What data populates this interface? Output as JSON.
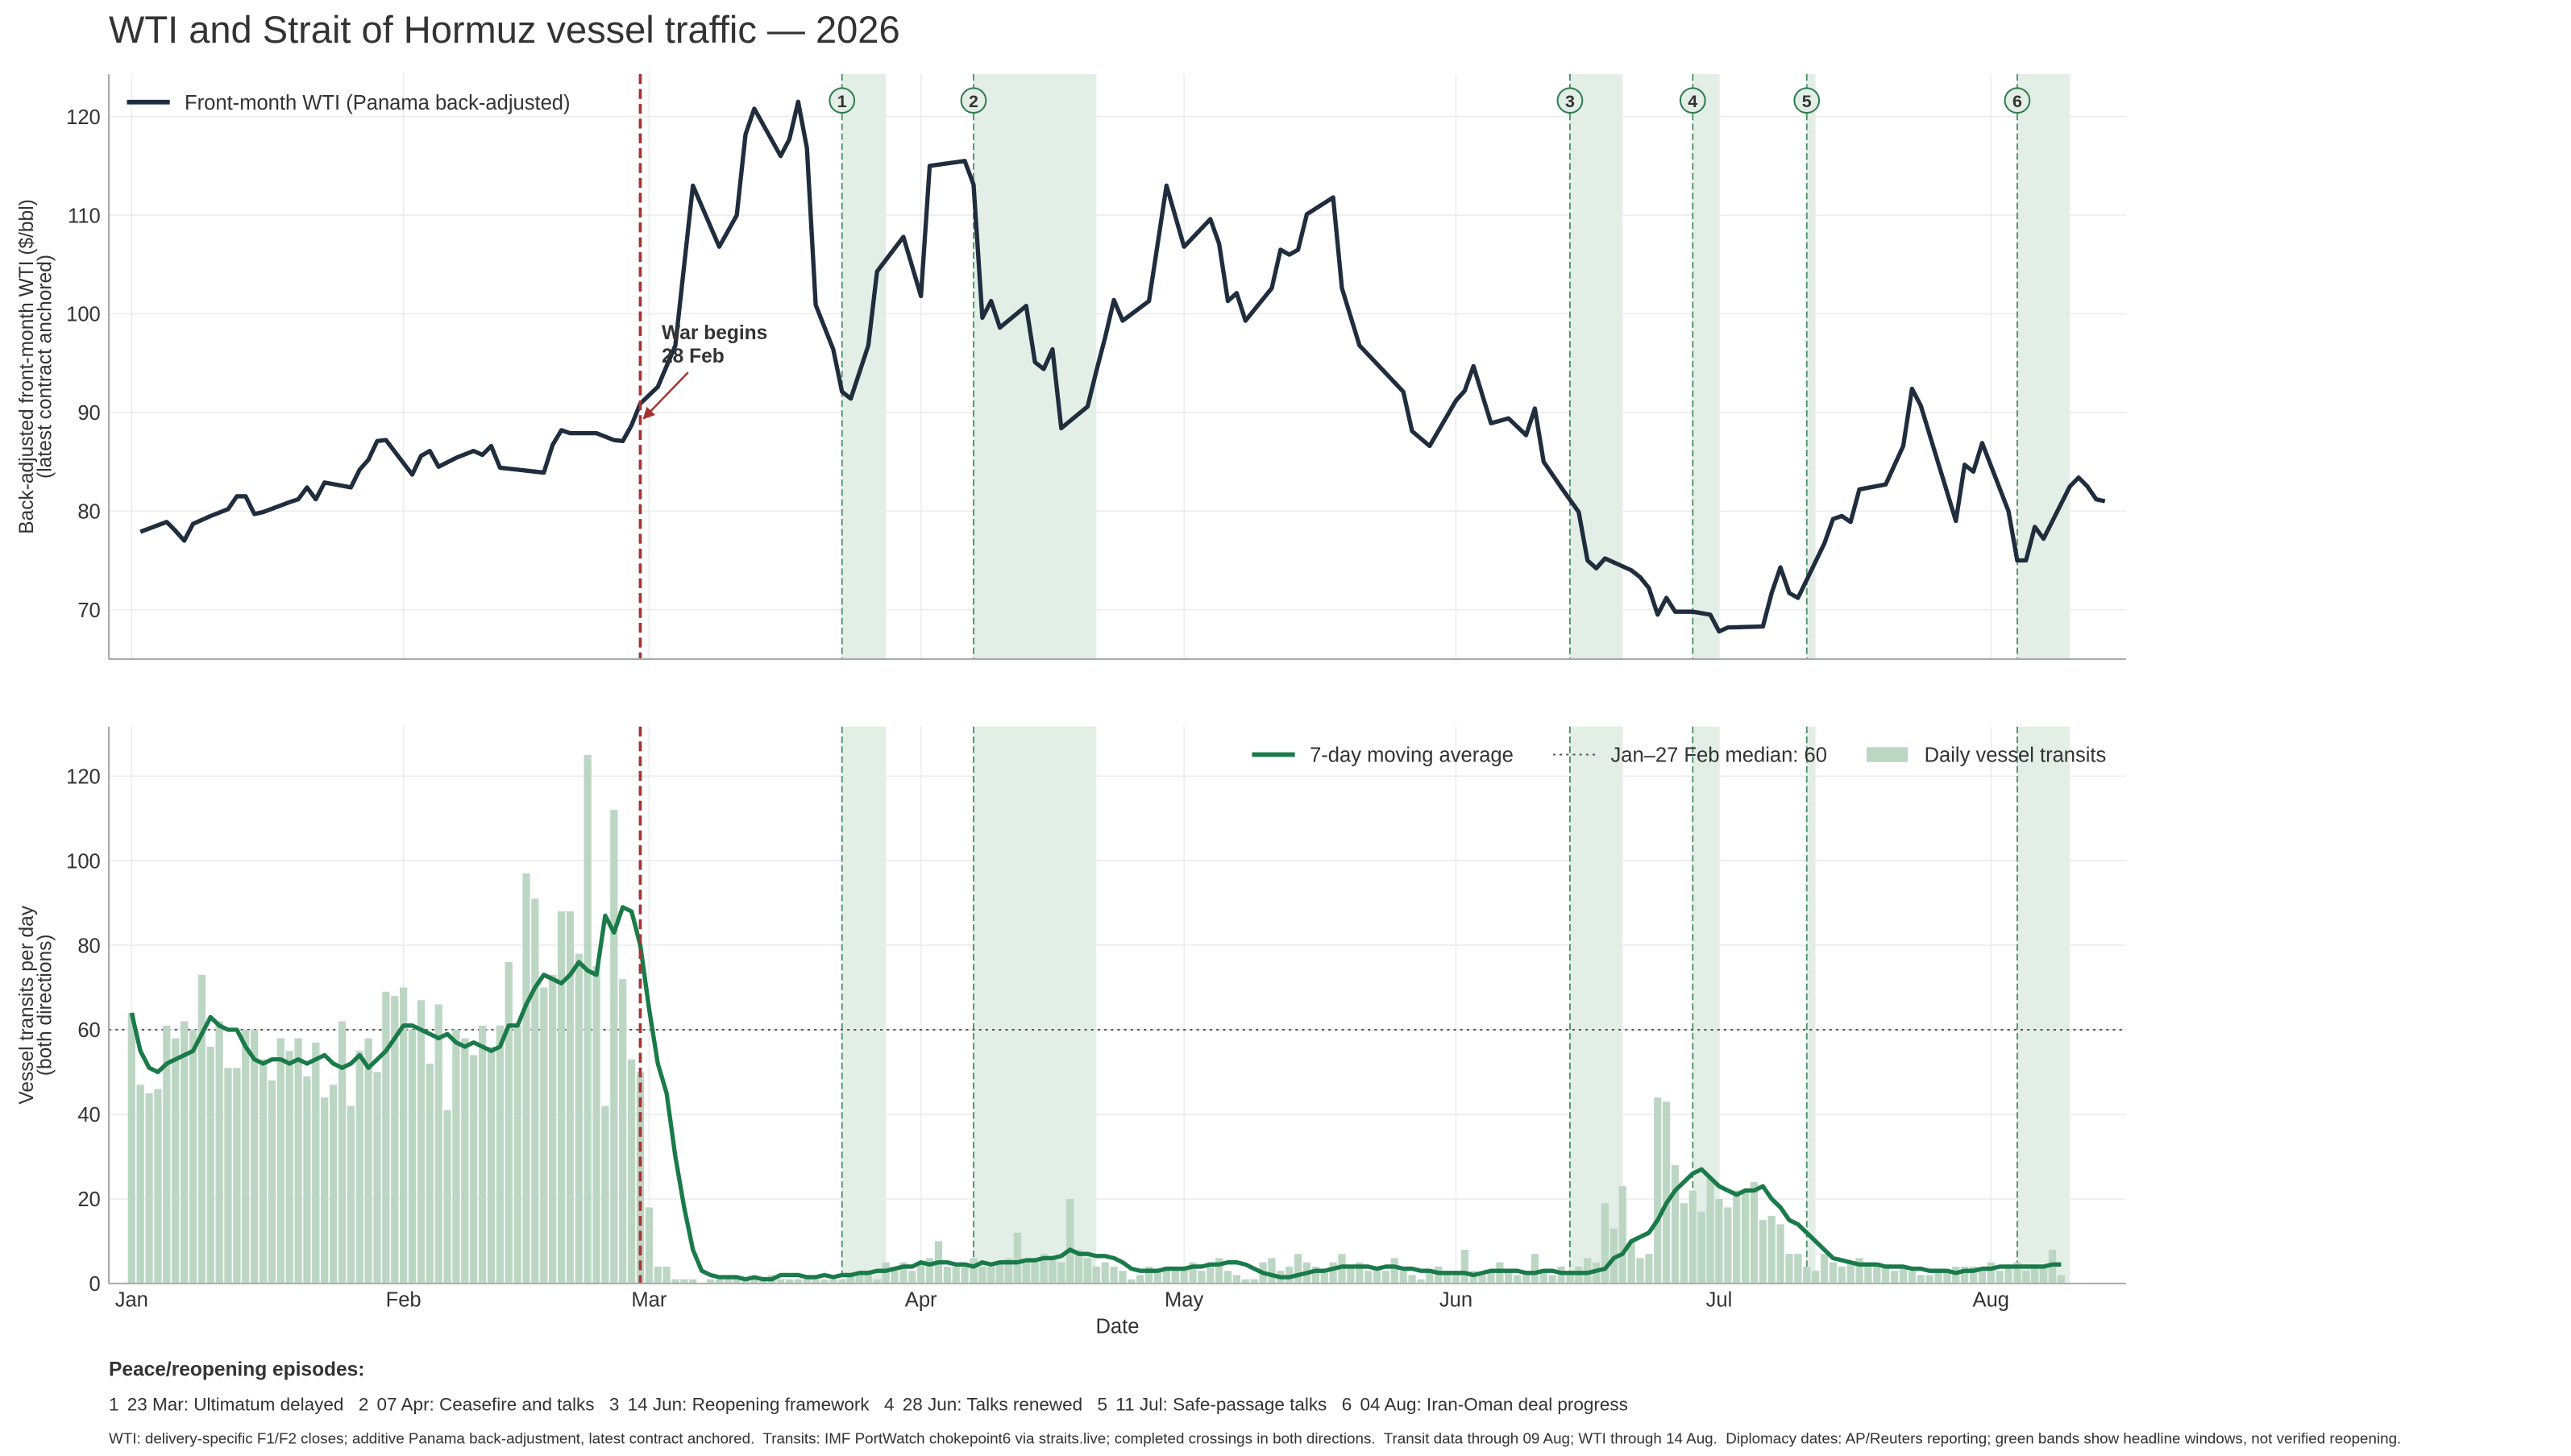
{
  "title": "WTI and Strait of Hormuz vessel traffic — 2026",
  "event": {
    "x": 58,
    "label": [
      "War begins",
      "28 Feb"
    ],
    "color": "#a83232"
  },
  "episodes_title": "Peace/reopening episodes:",
  "episodes": [
    {
      "number": 1,
      "date": 81,
      "end": 86,
      "label": "23 Mar: Ultimatum delayed"
    },
    {
      "number": 2,
      "date": 96,
      "end": 110,
      "label": "07 Apr: Ceasefire and talks"
    },
    {
      "number": 3,
      "date": 164,
      "end": 170,
      "label": "14 Jun: Reopening framework"
    },
    {
      "number": 4,
      "date": 178,
      "end": 181,
      "label": "28 Jun: Talks renewed"
    },
    {
      "number": 5,
      "date": 191,
      "end": 192,
      "label": "11 Jul: Safe-passage talks"
    },
    {
      "number": 6,
      "date": 215,
      "end": 221,
      "label": "04 Aug: Iran-Oman deal progress"
    }
  ],
  "footnote": "WTI: delivery-specific F1/F2 closes; additive Panama back-adjustment, latest contract anchored.  Transits: IMF PortWatch chokepoint6 via straits.live; completed crossings in both directions.  Transit data through 09 Aug; WTI through 14 Aug.  Diplomacy dates: AP/Reuters reporting; green bands show headline windows, not verified reopening.",
  "chart_data": [
    {
      "type": "line",
      "ylabel": [
        "Back-adjusted front-month WTI ($/bbl)",
        "(latest contract anchored)"
      ],
      "ylim": [
        65,
        124.3
      ],
      "yticks": [
        70,
        80,
        90,
        100,
        110,
        120
      ],
      "grid": true,
      "legend": "upper left",
      "x": [
        1,
        4,
        5,
        6,
        7,
        9,
        11,
        12,
        13,
        14,
        15,
        18,
        19,
        20,
        21,
        22,
        25,
        26,
        27,
        28,
        29,
        32,
        33,
        34,
        35,
        37,
        39,
        40,
        41,
        42,
        47,
        48,
        49,
        50,
        53,
        55,
        56,
        57,
        58,
        60,
        62,
        64,
        67,
        69,
        70,
        71,
        74,
        75,
        76,
        77,
        78,
        80,
        81,
        82,
        84,
        85,
        88,
        90,
        91,
        95,
        96,
        97,
        98,
        99,
        102,
        103,
        104,
        105,
        106,
        109,
        110,
        111,
        112,
        113,
        116,
        118,
        120,
        123,
        124,
        125,
        126,
        127,
        130,
        131,
        132,
        133,
        134,
        137,
        138,
        140,
        145,
        146,
        148,
        151,
        152,
        153,
        155,
        157,
        159,
        160,
        161,
        163,
        165,
        166,
        167,
        168,
        171,
        172,
        173,
        174,
        175,
        176,
        178,
        180,
        181,
        182,
        186,
        187,
        188,
        189,
        190,
        193,
        194,
        195,
        196,
        197,
        200,
        202,
        203,
        204,
        208,
        209,
        210,
        211,
        214,
        215,
        216,
        217,
        218,
        221,
        222,
        223,
        224,
        225
      ],
      "series": [
        {
          "name": "Front-month WTI (Panama back-adjusted)",
          "color": "#1f2d3d",
          "values": [
            77.9,
            78.9,
            78.0,
            77.0,
            78.7,
            79.5,
            80.2,
            81.5,
            81.5,
            79.7,
            79.9,
            80.9,
            81.2,
            82.4,
            81.2,
            82.9,
            82.4,
            84.2,
            85.2,
            87.1,
            87.2,
            83.7,
            85.6,
            86.1,
            84.5,
            85.4,
            86.1,
            85.7,
            86.6,
            84.4,
            83.9,
            86.7,
            88.2,
            87.9,
            87.9,
            87.2,
            87.1,
            88.7,
            90.9,
            92.6,
            96.8,
            113.0,
            106.8,
            110.0,
            118.2,
            120.8,
            116.0,
            117.7,
            121.5,
            116.8,
            100.9,
            96.4,
            92.1,
            91.4,
            96.8,
            104.3,
            107.8,
            101.8,
            115.0,
            115.5,
            113.1,
            99.6,
            101.3,
            98.6,
            100.8,
            95.1,
            94.4,
            96.4,
            88.4,
            90.6,
            94.2,
            97.6,
            101.4,
            99.3,
            101.3,
            113.0,
            106.8,
            109.6,
            107.1,
            101.3,
            102.1,
            99.3,
            102.6,
            106.5,
            106.0,
            106.5,
            110.1,
            111.8,
            102.6,
            96.8,
            92.1,
            88.1,
            86.6,
            91.2,
            92.2,
            94.7,
            88.9,
            89.4,
            87.7,
            90.4,
            85.0,
            82.4,
            79.9,
            75.0,
            74.2,
            75.2,
            74.0,
            73.3,
            72.2,
            69.5,
            71.2,
            69.8,
            69.8,
            69.5,
            67.8,
            68.2,
            68.3,
            71.7,
            74.3,
            71.7,
            71.2,
            76.7,
            79.2,
            79.5,
            78.9,
            82.2,
            82.7,
            86.6,
            92.4,
            90.7,
            79.0,
            84.7,
            84.0,
            86.9,
            80.0,
            75.0,
            75.0,
            78.4,
            77.2,
            82.5,
            83.4,
            82.5,
            81.2,
            81.0
          ]
        }
      ]
    },
    {
      "type": "bar",
      "xlabel": "Date",
      "ylabel": [
        "Vessel transits per day",
        "(both directions)"
      ],
      "xlim": [
        -2.6,
        227.4
      ],
      "xticks": [
        {
          "value": 0,
          "label": "Jan"
        },
        {
          "value": 31,
          "label": "Feb"
        },
        {
          "value": 59,
          "label": "Mar"
        },
        {
          "value": 90,
          "label": "Apr"
        },
        {
          "value": 120,
          "label": "May"
        },
        {
          "value": 151,
          "label": "Jun"
        },
        {
          "value": 181,
          "label": "Jul"
        },
        {
          "value": 212,
          "label": "Aug"
        }
      ],
      "ylim": [
        0,
        131.7
      ],
      "yticks": [
        0,
        20,
        40,
        60,
        80,
        100,
        120
      ],
      "grid": true,
      "legend": "upper right",
      "reference_lines": [
        {
          "value": 60,
          "name": "Jan–27 Feb median: 60",
          "color": "#555555"
        }
      ],
      "x": [
        0,
        1,
        2,
        3,
        4,
        5,
        6,
        7,
        8,
        9,
        10,
        11,
        12,
        13,
        14,
        15,
        16,
        17,
        18,
        19,
        20,
        21,
        22,
        23,
        24,
        25,
        26,
        27,
        28,
        29,
        30,
        31,
        32,
        33,
        34,
        35,
        36,
        37,
        38,
        39,
        40,
        41,
        42,
        43,
        44,
        45,
        46,
        47,
        48,
        49,
        50,
        51,
        52,
        53,
        54,
        55,
        56,
        57,
        58,
        59,
        60,
        61,
        62,
        63,
        64,
        65,
        66,
        67,
        68,
        69,
        70,
        71,
        72,
        73,
        74,
        75,
        76,
        77,
        78,
        79,
        80,
        81,
        82,
        83,
        84,
        85,
        86,
        87,
        88,
        89,
        90,
        91,
        92,
        93,
        94,
        95,
        96,
        97,
        98,
        99,
        100,
        101,
        102,
        103,
        104,
        105,
        106,
        107,
        108,
        109,
        110,
        111,
        112,
        113,
        114,
        115,
        116,
        117,
        118,
        119,
        120,
        121,
        122,
        123,
        124,
        125,
        126,
        127,
        128,
        129,
        130,
        131,
        132,
        133,
        134,
        135,
        136,
        137,
        138,
        139,
        140,
        141,
        142,
        143,
        144,
        145,
        146,
        147,
        148,
        149,
        150,
        151,
        152,
        153,
        154,
        155,
        156,
        157,
        158,
        159,
        160,
        161,
        162,
        163,
        164,
        165,
        166,
        167,
        168,
        169,
        170,
        171,
        172,
        173,
        174,
        175,
        176,
        177,
        178,
        179,
        180,
        181,
        182,
        183,
        184,
        185,
        186,
        187,
        188,
        189,
        190,
        191,
        192,
        193,
        194,
        195,
        196,
        197,
        198,
        199,
        200,
        201,
        202,
        203,
        204,
        205,
        206,
        207,
        208,
        209,
        210,
        211,
        212,
        213,
        214,
        215,
        216,
        217,
        218,
        219,
        220
      ],
      "series": [
        {
          "name": "7-day moving average",
          "type": "line",
          "color": "#1a7a4a",
          "values": [
            64,
            55,
            51,
            50,
            52,
            53,
            54,
            55,
            59,
            63,
            61,
            60,
            60,
            56,
            53,
            52,
            53,
            53,
            52,
            53,
            52,
            53,
            54,
            52,
            51,
            52,
            54,
            51,
            53,
            55,
            58,
            61,
            61,
            60,
            59,
            58,
            59,
            57,
            56,
            57,
            56,
            55,
            56,
            61,
            61,
            66,
            70,
            73,
            72,
            71,
            73,
            76,
            74,
            73,
            87,
            83,
            89,
            88,
            80,
            65,
            52,
            45,
            30,
            18,
            8,
            3,
            2,
            1.5,
            1.5,
            1.5,
            1,
            1.5,
            1,
            1,
            2,
            2,
            2,
            1.5,
            1.5,
            2,
            1.5,
            2,
            2,
            2.5,
            2.5,
            3,
            3,
            3.5,
            4,
            4,
            5,
            4.5,
            5,
            5,
            4.5,
            4.5,
            4,
            5,
            4.5,
            5,
            5,
            5,
            5.5,
            5.5,
            6,
            6,
            6.5,
            8,
            7,
            7,
            6.5,
            6.5,
            6,
            5,
            3.5,
            3,
            3,
            3,
            3.5,
            3.5,
            3.5,
            4,
            4,
            4.5,
            4.5,
            5,
            5,
            4.5,
            3.5,
            2.5,
            2,
            1.5,
            1.5,
            2,
            2.5,
            3,
            3,
            3.5,
            4,
            4,
            4,
            4,
            3.5,
            4,
            4,
            3.5,
            3.5,
            3,
            3,
            2.5,
            2.5,
            2.5,
            2.5,
            2,
            2.5,
            3,
            3,
            3,
            3,
            2.5,
            2.5,
            3,
            3,
            2.5,
            2.5,
            2.5,
            2.5,
            3,
            3.5,
            6,
            7,
            10,
            11,
            12,
            15,
            19,
            22,
            24,
            26,
            27,
            25,
            23,
            22,
            21,
            22,
            22,
            23,
            20,
            18,
            15,
            14,
            12,
            10,
            8,
            6,
            5.5,
            5,
            4.5,
            4.5,
            4.5,
            4,
            4,
            4,
            3.5,
            3.5,
            3,
            3,
            3,
            2.5,
            3,
            3,
            3.5,
            3.5,
            4,
            4,
            4,
            4,
            4,
            4,
            4.5,
            4.5
          ]
        },
        {
          "name": "Daily vessel transits",
          "type": "bar",
          "color": "#bcd6c4",
          "values": [
            64,
            47,
            45,
            46,
            61,
            58,
            62,
            60,
            73,
            56,
            62,
            51,
            51,
            60,
            60,
            53,
            48,
            58,
            55,
            58,
            49,
            57,
            44,
            47,
            62,
            42,
            55,
            58,
            50,
            69,
            68,
            70,
            60,
            67,
            52,
            66,
            41,
            60,
            58,
            54,
            61,
            56,
            61,
            76,
            61,
            97,
            91,
            70,
            73,
            88,
            88,
            78,
            125,
            75,
            42,
            112,
            72,
            53,
            50,
            18,
            4,
            4,
            1,
            1,
            1,
            0,
            1,
            1,
            1,
            1,
            1,
            1,
            1,
            2,
            1,
            1,
            1,
            2,
            1,
            1,
            1,
            1,
            2,
            2,
            3,
            1,
            5,
            4,
            5,
            3,
            5,
            6,
            10,
            4,
            4,
            5,
            6,
            4,
            4,
            5,
            6,
            12,
            5,
            6,
            7,
            6,
            5,
            20,
            8,
            6,
            4,
            5,
            4,
            3,
            1,
            2,
            4,
            3,
            4,
            3,
            4,
            5,
            3,
            5,
            6,
            3,
            2,
            1,
            1,
            5,
            6,
            3,
            4,
            7,
            5,
            4,
            3,
            5,
            7,
            4,
            5,
            3,
            4,
            3,
            6,
            3,
            2,
            1,
            3,
            4,
            3,
            3,
            8,
            3,
            2,
            3,
            5,
            3,
            2,
            3,
            7,
            3,
            2,
            4,
            3,
            4,
            6,
            5,
            19,
            13,
            23,
            10,
            6,
            7,
            44,
            43,
            28,
            19,
            22,
            17,
            25,
            20,
            18,
            22,
            22,
            24,
            15,
            16,
            14,
            7,
            7,
            4,
            3,
            7,
            5,
            4,
            5,
            6,
            4,
            5,
            4,
            3,
            4,
            3,
            2,
            2,
            3,
            3,
            4,
            4,
            4,
            3,
            5,
            3,
            4,
            5,
            3,
            4,
            4,
            8,
            2
          ]
        }
      ]
    }
  ]
}
